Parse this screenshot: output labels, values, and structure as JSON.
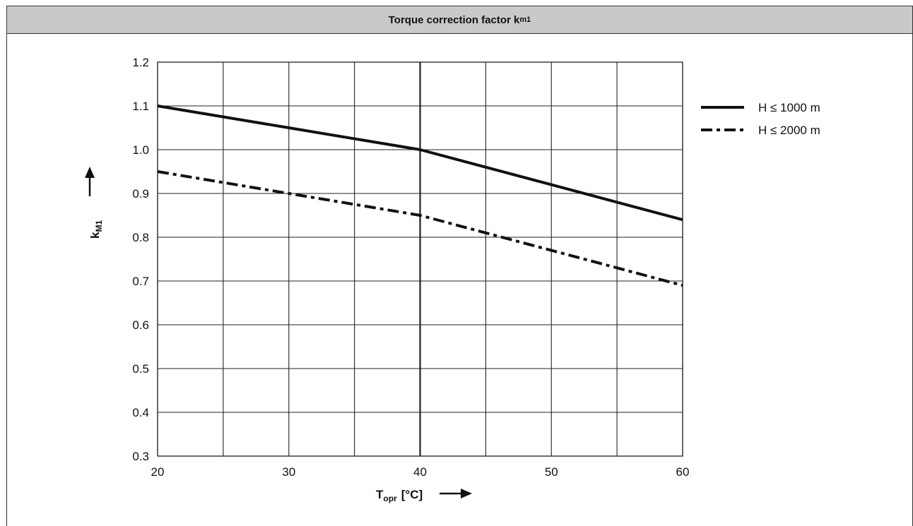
{
  "header": {
    "title_main": "Torque correction factor k",
    "title_sub": "m1"
  },
  "chart_data": {
    "type": "line",
    "xlabel_main": "T",
    "xlabel_sub": "opr",
    "xlabel_unit": "[°C]",
    "ylabel_main": "k",
    "ylabel_sub": "M1",
    "xlim": [
      20,
      60
    ],
    "ylim": [
      0.3,
      1.2
    ],
    "xticks": [
      "20",
      "30",
      "40",
      "50",
      "60"
    ],
    "yticks": [
      "0.3",
      "0.4",
      "0.5",
      "0.6",
      "0.7",
      "0.8",
      "0.9",
      "1.0",
      "1.1",
      "1.2"
    ],
    "grid": true,
    "legend_position": "right",
    "series": [
      {
        "name": "H ≤ 1000 m",
        "style": "solid",
        "x": [
          20,
          30,
          40,
          50,
          60
        ],
        "y": [
          1.1,
          1.05,
          1.0,
          0.92,
          0.84
        ]
      },
      {
        "name": "H ≤ 2000 m",
        "style": "dash-dot",
        "x": [
          20,
          30,
          40,
          50,
          60
        ],
        "y": [
          0.95,
          0.9,
          0.85,
          0.77,
          0.69
        ]
      }
    ]
  }
}
